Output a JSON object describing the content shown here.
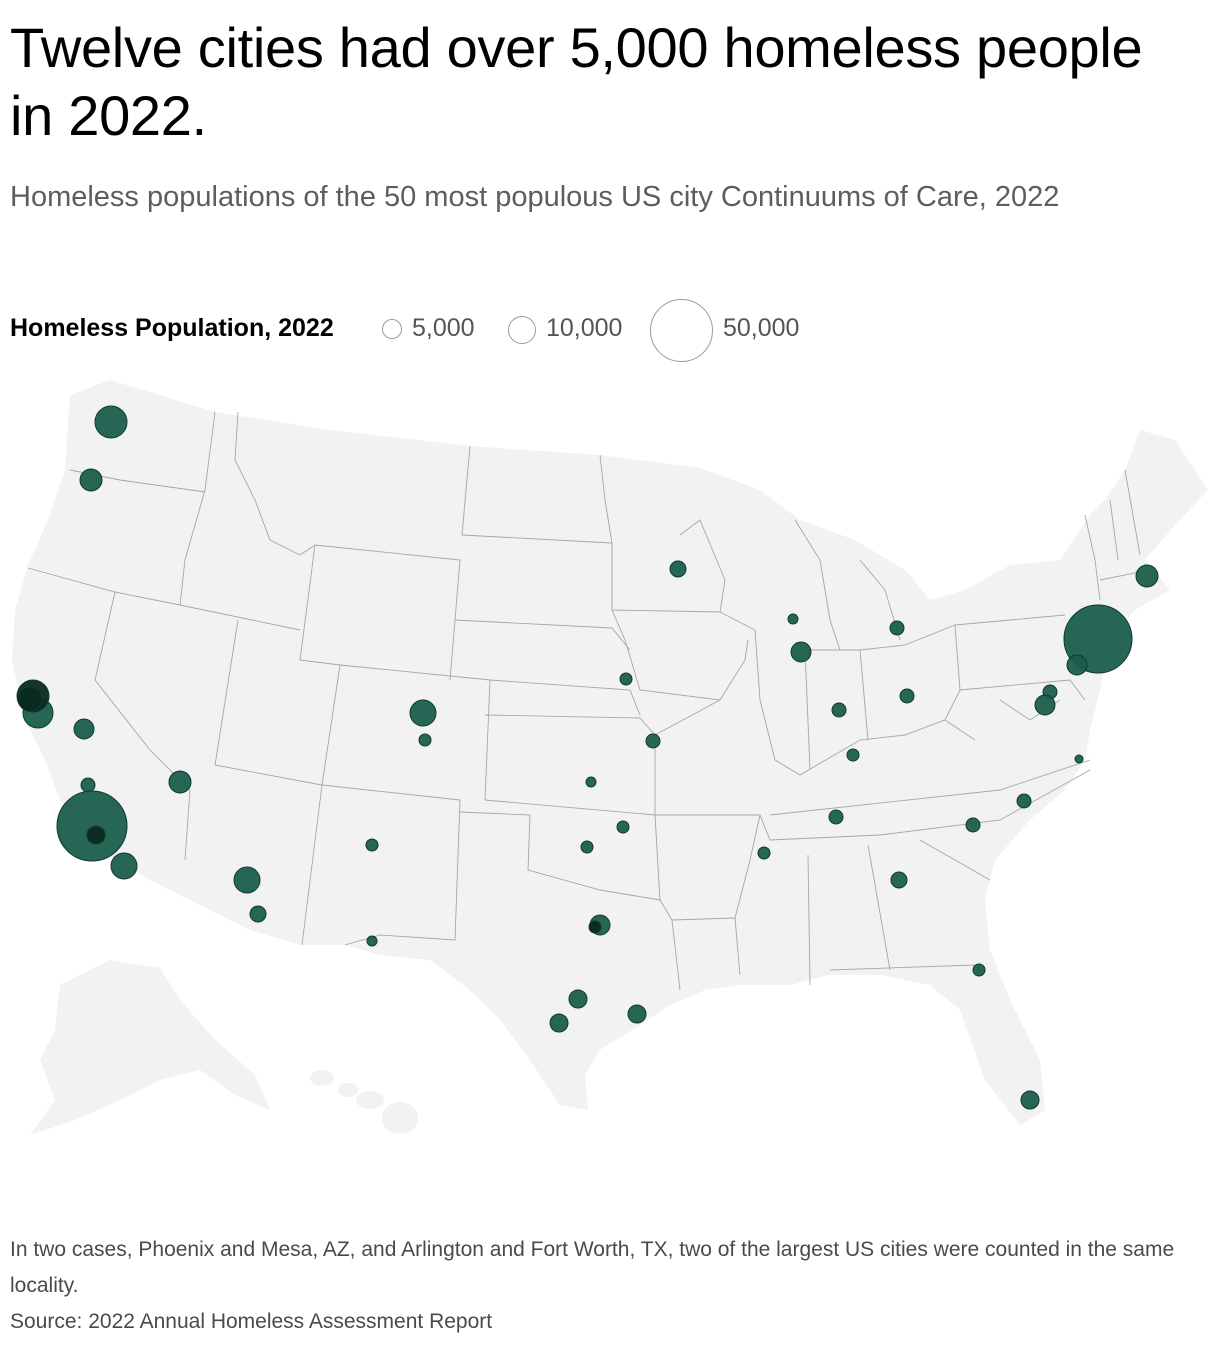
{
  "title": "Twelve cities had over 5,000 homeless people in 2022.",
  "subtitle": "Homeless populations of the 50 most populous US city Continuums of Care, 2022",
  "legend": {
    "title": "Homeless Population, 2022",
    "items": [
      {
        "label": "5,000",
        "value": 5000
      },
      {
        "label": "10,000",
        "value": 10000
      },
      {
        "label": "50,000",
        "value": 50000
      }
    ]
  },
  "colors": {
    "bubble": "#1b5e4b",
    "bubble_stroke": "#0f3a2e",
    "land": "#f2f2f2",
    "border": "#a6a6a6"
  },
  "footer": {
    "note": "In two cases, Phoenix and Mesa, AZ, and Arlington and Fort Worth, TX, two of the largest US cities were counted in the same locality.",
    "source": "Source: 2022 Annual Homeless Assessment Report"
  }
}
